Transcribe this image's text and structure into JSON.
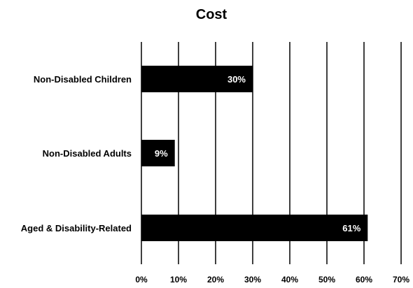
{
  "chart_data": {
    "type": "bar",
    "orientation": "horizontal",
    "title": "Cost",
    "xlabel": "",
    "ylabel": "",
    "categories": [
      "Non-Disabled Children",
      "Non-Disabled Adults",
      "Aged & Disability-Related"
    ],
    "values": [
      30,
      9,
      61
    ],
    "data_labels": [
      "30%",
      "9%",
      "61%"
    ],
    "xlim": [
      0,
      70
    ],
    "x_ticks": [
      0,
      10,
      20,
      30,
      40,
      50,
      60,
      70
    ],
    "x_tick_labels": [
      "0%",
      "10%",
      "20%",
      "30%",
      "40%",
      "50%",
      "60%",
      "70%"
    ],
    "grid": true,
    "legend": "none",
    "bar_color": "#000000",
    "data_label_color": "#ffffff"
  }
}
